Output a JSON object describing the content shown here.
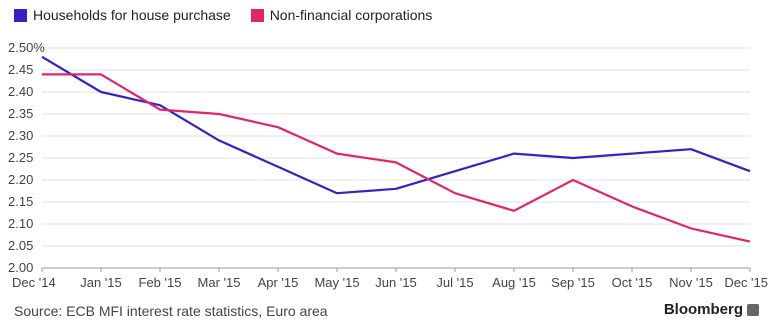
{
  "chart_data": {
    "type": "line",
    "categories": [
      "Dec '14",
      "Jan '15",
      "Feb '15",
      "Mar '15",
      "Apr '15",
      "May '15",
      "Jun '15",
      "Jul '15",
      "Aug '15",
      "Sep '15",
      "Oct '15",
      "Nov '15",
      "Dec '15"
    ],
    "series": [
      {
        "name": "Households for house purchase",
        "color": "#3a1fc2",
        "values": [
          2.48,
          2.4,
          2.37,
          2.29,
          2.23,
          2.17,
          2.18,
          2.22,
          2.26,
          2.25,
          2.26,
          2.27,
          2.22
        ]
      },
      {
        "name": "Non-financial corporations",
        "color": "#e0256f",
        "values": [
          2.44,
          2.44,
          2.36,
          2.35,
          2.32,
          2.26,
          2.24,
          2.17,
          2.13,
          2.2,
          2.14,
          2.09,
          2.06
        ]
      }
    ],
    "yticks": [
      "2.50%",
      "2.45",
      "2.40",
      "2.35",
      "2.30",
      "2.25",
      "2.20",
      "2.15",
      "2.10",
      "2.05",
      "2.00"
    ],
    "ylim": [
      2.0,
      2.5
    ],
    "grid": true,
    "legend": "top-left"
  },
  "source": "Source: ECB MFI interest rate statistics, Euro area",
  "brand": "Bloomberg"
}
